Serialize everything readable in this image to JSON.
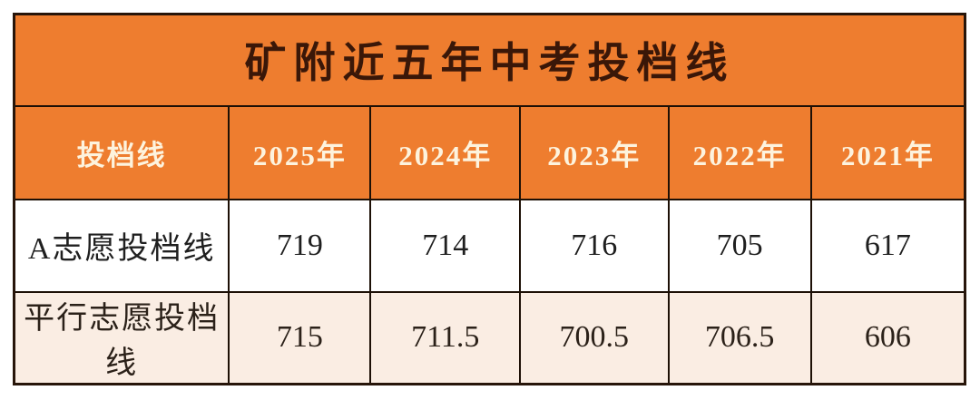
{
  "header": {
    "title": "矿附近五年中考投档线"
  },
  "table": {
    "column_headers": [
      "投档线",
      "2025年",
      "2024年",
      "2023年",
      "2022年",
      "2021年"
    ],
    "rows": [
      {
        "label": "A志愿投档线",
        "values": [
          "719",
          "714",
          "716",
          "705",
          "617"
        ]
      },
      {
        "label": "平行志愿投档线",
        "values": [
          "715",
          "711.5",
          "700.5",
          "706.5",
          "606"
        ]
      }
    ]
  },
  "colors": {
    "header_bg": "#ee7d2f",
    "title_text": "#3a1708",
    "header_text": "#fdf3de",
    "row1_bg": "#ffffff",
    "row2_bg": "#faede3",
    "border": "#1d1006",
    "page_bg": "#ffffff"
  },
  "chart_data": {
    "type": "table",
    "title": "矿附近五年中考投档线",
    "row_header_label": "投档线",
    "categories": [
      "2025年",
      "2024年",
      "2023年",
      "2022年",
      "2021年"
    ],
    "series": [
      {
        "name": "A志愿投档线",
        "values": [
          719,
          714,
          716,
          705,
          617
        ]
      },
      {
        "name": "平行志愿投档线",
        "values": [
          715,
          711.5,
          700.5,
          706.5,
          606
        ]
      }
    ]
  }
}
